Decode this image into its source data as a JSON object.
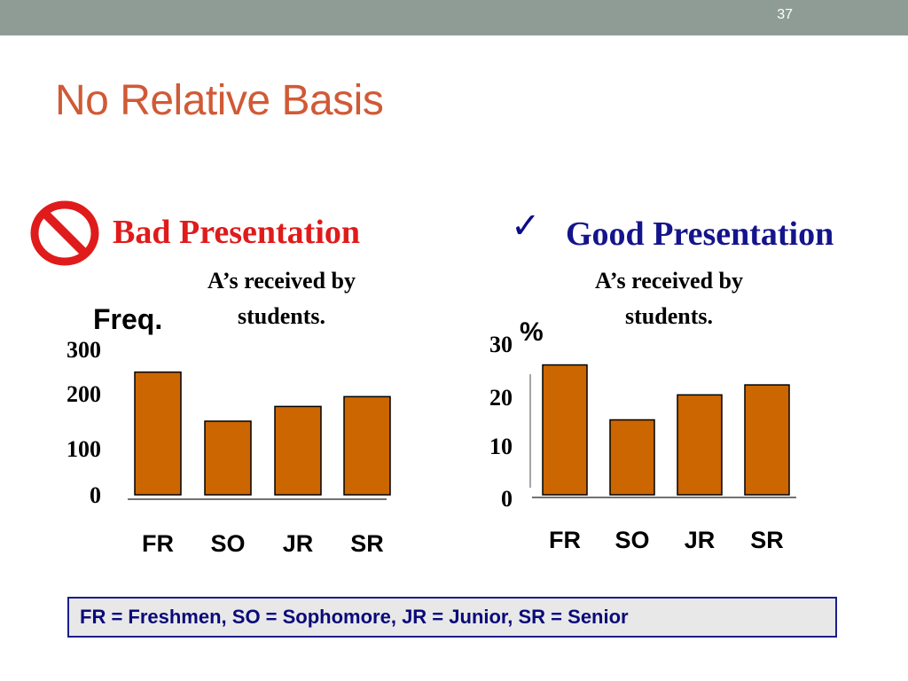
{
  "slide": {
    "number": "37",
    "title": "No Relative Basis",
    "legend": "FR = Freshmen,  SO = Sophomore,  JR = Junior,  SR = Senior"
  },
  "left": {
    "heading": "Bad Presentation",
    "caption": "A’s received by\nstudents.",
    "unit": "Freq.",
    "icon": "prohibited-icon"
  },
  "right": {
    "heading": "Good Presentation",
    "caption": "A’s received by\nstudents.",
    "unit": "%",
    "icon": "checkmark-icon",
    "check_glyph": "✓"
  },
  "colors": {
    "bar_fill": "#cc6600",
    "bar_stroke": "#000000",
    "title": "#d05a36",
    "bad": "#e01b1b",
    "good": "#14148c",
    "topbar": "#8f9c96"
  },
  "chart_data": [
    {
      "type": "bar",
      "categories": [
        "FR",
        "SO",
        "JR",
        "SR"
      ],
      "values": [
        250,
        150,
        180,
        200
      ],
      "yticks": [
        "0",
        "100",
        "200",
        "300"
      ],
      "title": "",
      "xlabel": "",
      "ylabel": "Freq.",
      "ylim": [
        0,
        300
      ],
      "grid": false
    },
    {
      "type": "bar",
      "categories": [
        "FR",
        "SO",
        "JR",
        "SR"
      ],
      "values": [
        26,
        15,
        20,
        22
      ],
      "yticks": [
        "0",
        "10",
        "20",
        "30"
      ],
      "title": "",
      "xlabel": "",
      "ylabel": "%",
      "ylim": [
        0,
        30
      ],
      "grid": false
    }
  ]
}
